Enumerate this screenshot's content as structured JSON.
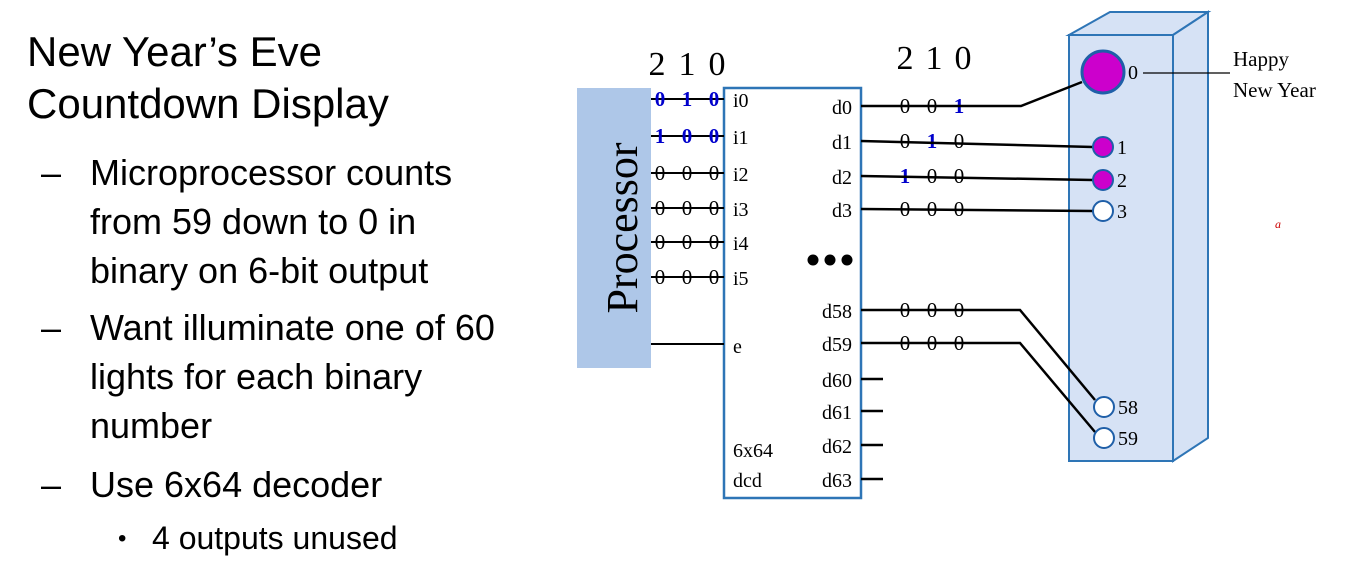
{
  "title_lines": [
    "New Year’s Eve",
    "Countdown Display"
  ],
  "bullets": [
    [
      "Microprocessor counts",
      "from 59 down to 0 in",
      "binary on 6-bit output"
    ],
    [
      "Want illuminate one of 60",
      "lights for each binary",
      "number"
    ],
    [
      "Use 6x64 decoder"
    ]
  ],
  "sub_bullet": "4 outputs unused",
  "diagram": {
    "processor_label": "Processor",
    "input_bit_header": [
      "2",
      "1",
      "0"
    ],
    "output_bit_header": [
      "2",
      "1",
      "0"
    ],
    "inputs": [
      {
        "pin": "i0",
        "bits": [
          "0",
          "1",
          "0"
        ],
        "highlight": true
      },
      {
        "pin": "i1",
        "bits": [
          "1",
          "0",
          "0"
        ],
        "highlight": true
      },
      {
        "pin": "i2",
        "bits": [
          "0",
          "0",
          "0"
        ],
        "highlight": false
      },
      {
        "pin": "i3",
        "bits": [
          "0",
          "0",
          "0"
        ],
        "highlight": false
      },
      {
        "pin": "i4",
        "bits": [
          "0",
          "0",
          "0"
        ],
        "highlight": false
      },
      {
        "pin": "i5",
        "bits": [
          "0",
          "0",
          "0"
        ],
        "highlight": false
      }
    ],
    "enable_pin": "e",
    "decoder_label": [
      "6x64",
      "dcd"
    ],
    "outputs": [
      {
        "pin": "d0",
        "bits": [
          "0",
          "0",
          "1"
        ],
        "blue": [
          false,
          false,
          true
        ]
      },
      {
        "pin": "d1",
        "bits": [
          "0",
          "1",
          "0"
        ],
        "blue": [
          false,
          true,
          false
        ]
      },
      {
        "pin": "d2",
        "bits": [
          "1",
          "0",
          "0"
        ],
        "blue": [
          true,
          false,
          false
        ]
      },
      {
        "pin": "d3",
        "bits": [
          "0",
          "0",
          "0"
        ],
        "blue": [
          false,
          false,
          false
        ]
      },
      {
        "pin": "d58",
        "bits": [
          "0",
          "0",
          "0"
        ],
        "blue": [
          false,
          false,
          false
        ]
      },
      {
        "pin": "d59",
        "bits": [
          "0",
          "0",
          "0"
        ],
        "blue": [
          false,
          false,
          false
        ]
      }
    ],
    "unused_outputs": [
      "d60",
      "d61",
      "d62",
      "d63"
    ],
    "lights": [
      {
        "label": "0",
        "lit": true
      },
      {
        "label": "1",
        "lit": true
      },
      {
        "label": "2",
        "lit": true
      },
      {
        "label": "3",
        "lit": false
      },
      {
        "label": "58",
        "lit": false
      },
      {
        "label": "59",
        "lit": false
      }
    ],
    "callout": [
      "Happy",
      "New Year"
    ],
    "stray_mark": "a"
  },
  "colors": {
    "highlight_bits": "#0000cc",
    "decoder_border": "#2e75b6",
    "processor_fill": "#aec7e8",
    "panel_fill": "#d6e2f5",
    "light_on": "#cc00cc",
    "light_outline": "#1f5fa8",
    "stray_mark": "#cc0000"
  }
}
